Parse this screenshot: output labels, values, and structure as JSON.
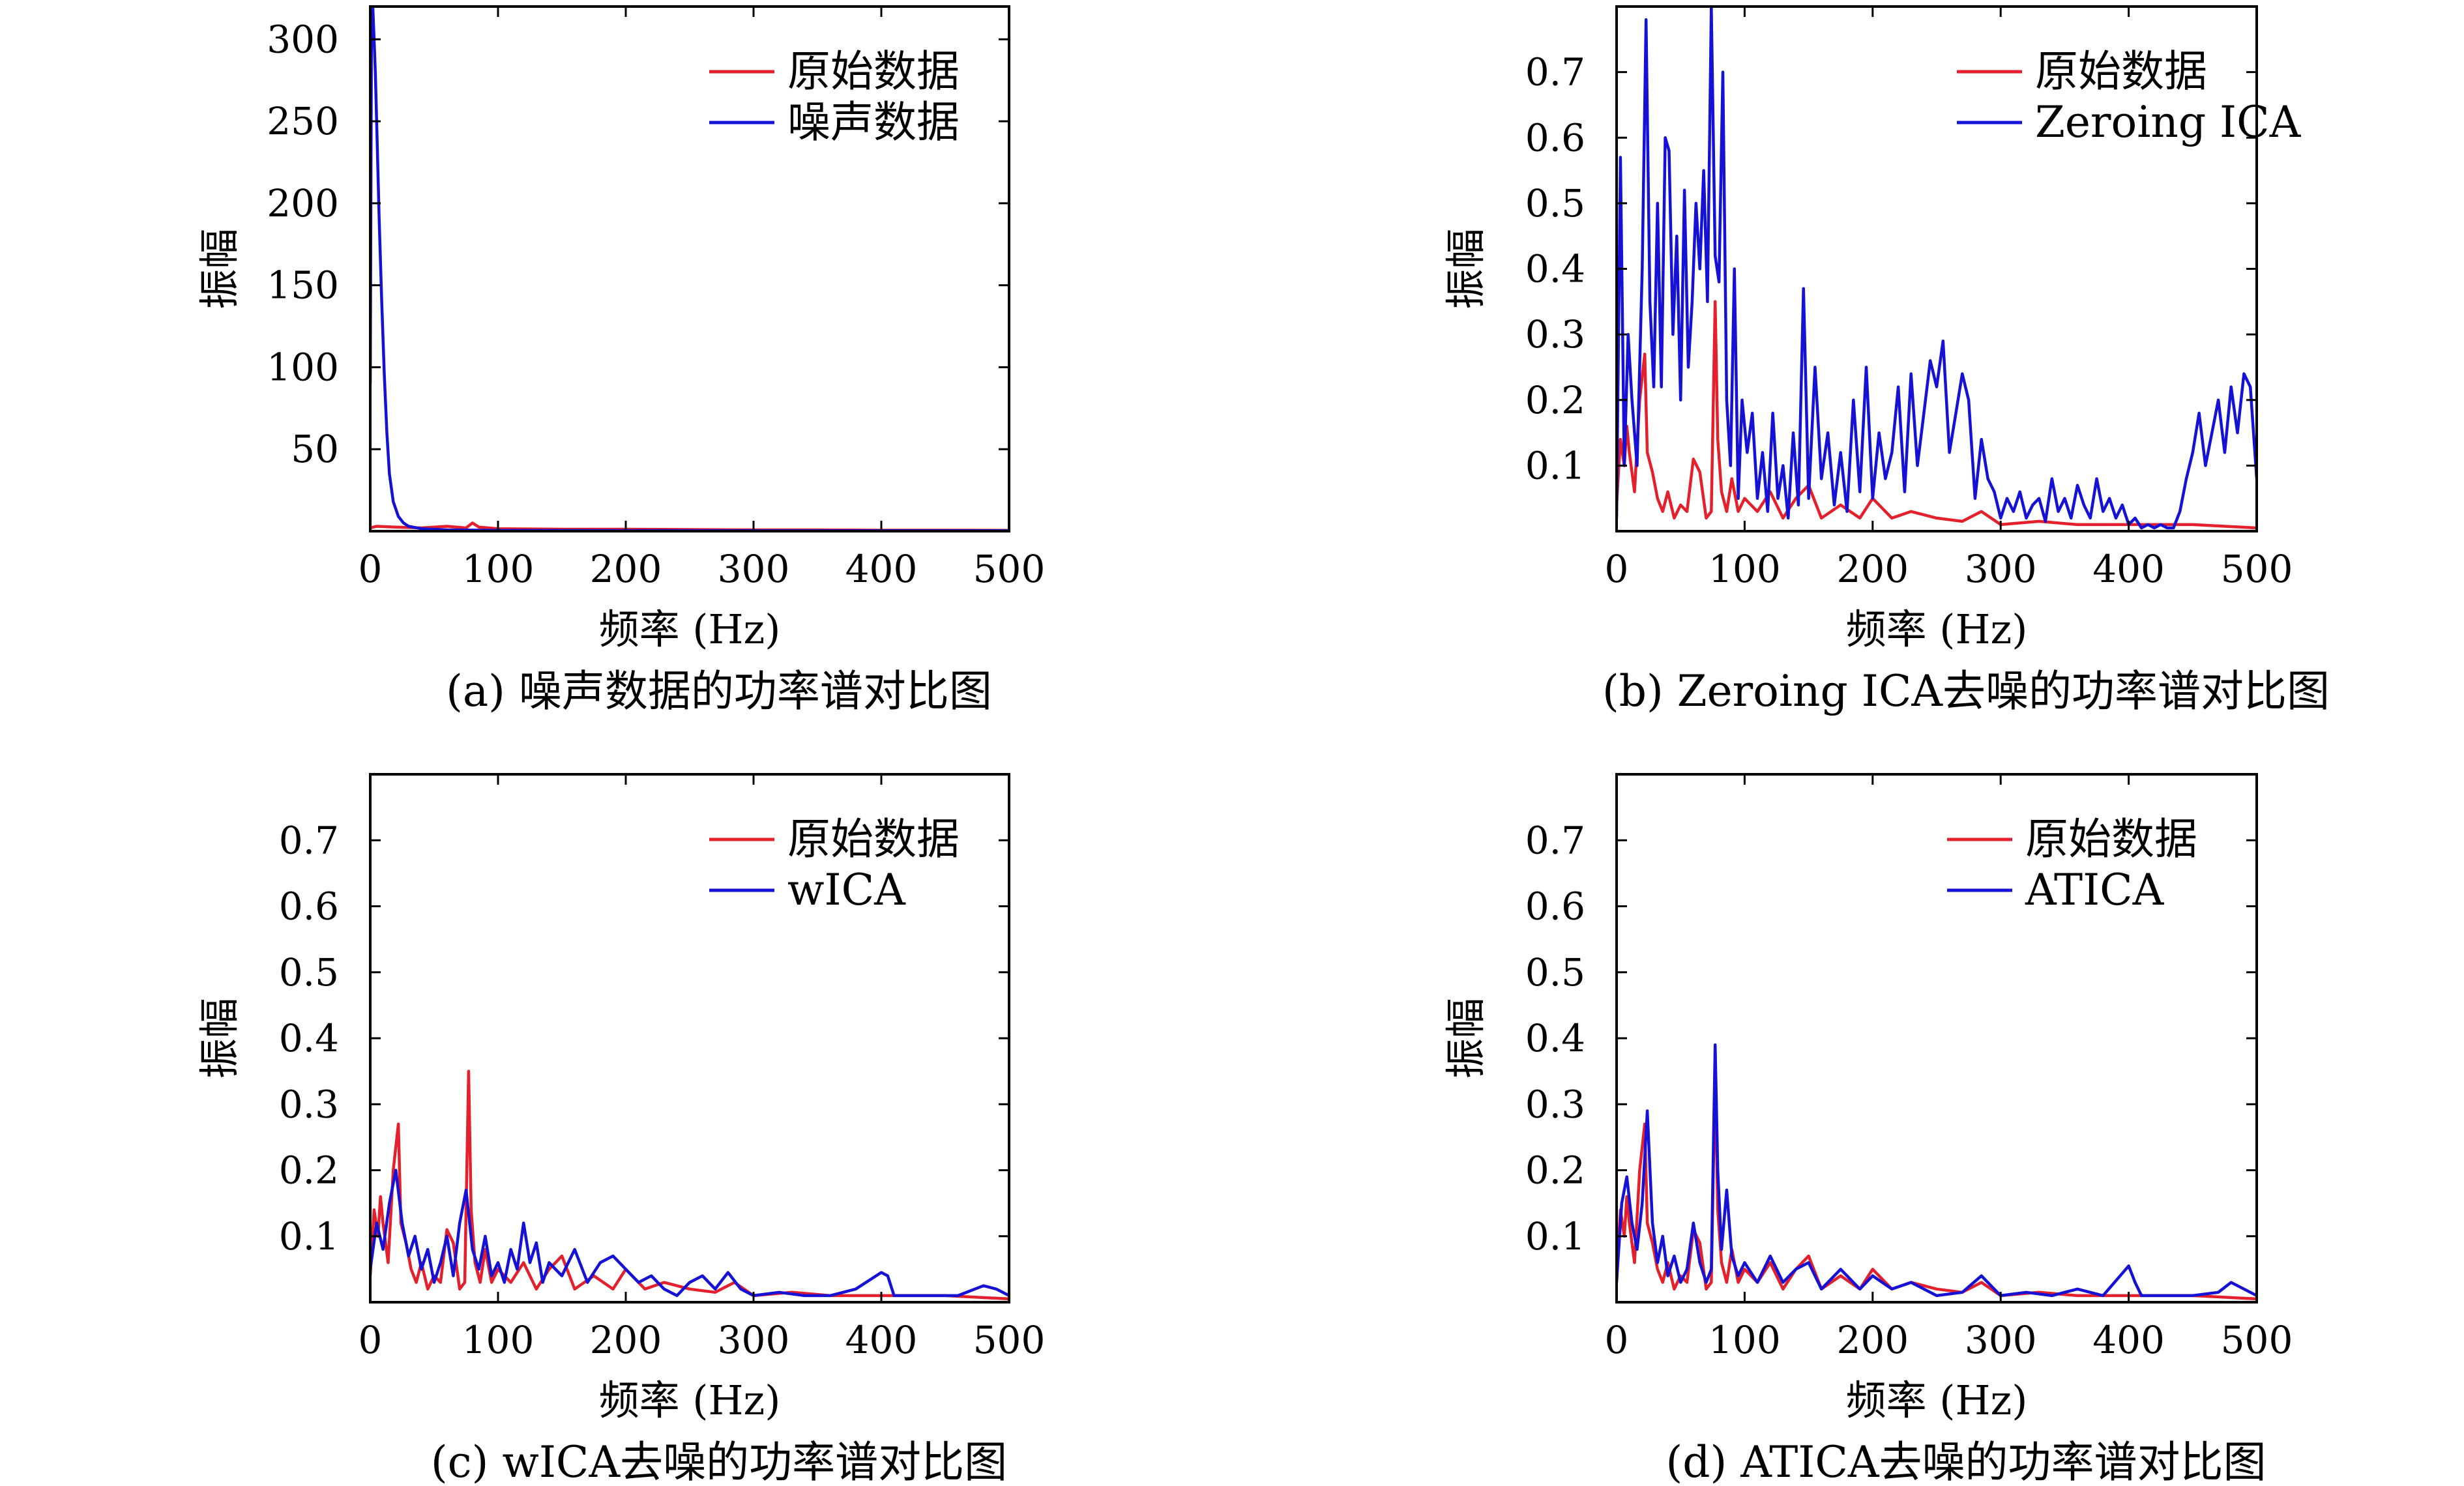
{
  "colors": {
    "original": "#e4202c",
    "other": "#1512d6"
  },
  "chart_data": [
    {
      "type": "line",
      "caption": "(a) 噪声数据的功率谱对比图",
      "xlabel": "频率 (Hz)",
      "ylabel": "振幅",
      "xlim": [
        0,
        500
      ],
      "ylim": [
        0,
        320
      ],
      "xticks": [
        0,
        100,
        200,
        300,
        400,
        500
      ],
      "xtick_labels": [
        "0",
        "100",
        "200",
        "300",
        "400",
        "500"
      ],
      "yticks": [
        50,
        100,
        150,
        200,
        250,
        300
      ],
      "ytick_labels": [
        "50",
        "100",
        "150",
        "200",
        "250",
        "300"
      ],
      "legend_position": "top-right",
      "series": [
        {
          "name": "原始数据",
          "color": "#e4202c",
          "x": [
            0,
            5,
            20,
            40,
            60,
            75,
            80,
            85,
            100,
            150,
            200,
            250,
            300,
            350,
            400,
            450,
            500
          ],
          "y": [
            2,
            3,
            2.5,
            2,
            3,
            2,
            5,
            2.5,
            1.5,
            1.2,
            1.2,
            1,
            0.8,
            0.8,
            0.6,
            0.6,
            0.5
          ]
        },
        {
          "name": "噪声数据",
          "color": "#1512d6",
          "x": [
            0,
            1,
            2,
            3,
            4,
            5,
            7,
            9,
            11,
            13,
            15,
            18,
            22,
            26,
            30,
            40,
            60,
            100,
            200,
            300,
            400,
            500
          ],
          "y": [
            90,
            320,
            320,
            300,
            280,
            250,
            190,
            140,
            95,
            60,
            35,
            18,
            9,
            5,
            3,
            1.5,
            0.8,
            0.5,
            0.4,
            0.3,
            0.3,
            0.3
          ]
        }
      ]
    },
    {
      "type": "line",
      "caption": "(b) Zeroing ICA去噪的功率谱对比图",
      "xlabel": "频率 (Hz)",
      "ylabel": "振幅",
      "xlim": [
        0,
        500
      ],
      "ylim": [
        0,
        0.8
      ],
      "xticks": [
        0,
        100,
        200,
        300,
        400,
        500
      ],
      "xtick_labels": [
        "0",
        "100",
        "200",
        "300",
        "400",
        "500"
      ],
      "yticks": [
        0.1,
        0.2,
        0.3,
        0.4,
        0.5,
        0.6,
        0.7
      ],
      "ytick_labels": [
        "0.1",
        "0.2",
        "0.3",
        "0.4",
        "0.5",
        "0.6",
        "0.7"
      ],
      "legend_position": "top-right",
      "series": [
        {
          "name": "原始数据",
          "color": "#e4202c",
          "x": [
            0,
            3,
            6,
            8,
            10,
            14,
            18,
            22,
            24,
            28,
            32,
            36,
            40,
            45,
            50,
            55,
            60,
            65,
            70,
            74,
            77,
            79,
            82,
            86,
            90,
            95,
            100,
            110,
            120,
            130,
            140,
            150,
            160,
            175,
            190,
            200,
            215,
            230,
            250,
            270,
            285,
            300,
            330,
            360,
            400,
            450,
            500
          ],
          "y": [
            0.04,
            0.14,
            0.1,
            0.16,
            0.12,
            0.06,
            0.2,
            0.27,
            0.12,
            0.09,
            0.05,
            0.03,
            0.06,
            0.02,
            0.04,
            0.03,
            0.11,
            0.09,
            0.02,
            0.03,
            0.35,
            0.14,
            0.06,
            0.03,
            0.08,
            0.03,
            0.05,
            0.03,
            0.06,
            0.02,
            0.05,
            0.07,
            0.02,
            0.04,
            0.02,
            0.05,
            0.02,
            0.03,
            0.02,
            0.015,
            0.03,
            0.01,
            0.015,
            0.01,
            0.01,
            0.01,
            0.005
          ]
        },
        {
          "name": "Zeroing ICA",
          "color": "#1512d6",
          "x": [
            0,
            3,
            6,
            9,
            12,
            16,
            20,
            23,
            26,
            29,
            32,
            35,
            38,
            41,
            44,
            47,
            50,
            53,
            56,
            59,
            62,
            65,
            68,
            71,
            74,
            77,
            80,
            83,
            86,
            89,
            92,
            95,
            98,
            102,
            106,
            110,
            114,
            118,
            122,
            126,
            130,
            134,
            138,
            142,
            146,
            150,
            155,
            160,
            165,
            170,
            175,
            180,
            185,
            190,
            195,
            200,
            205,
            210,
            215,
            220,
            225,
            230,
            235,
            240,
            245,
            250,
            255,
            260,
            265,
            270,
            275,
            280,
            285,
            290,
            295,
            300,
            305,
            310,
            315,
            320,
            325,
            330,
            335,
            340,
            345,
            350,
            355,
            360,
            365,
            370,
            375,
            380,
            385,
            390,
            395,
            400,
            405,
            410,
            415,
            420,
            425,
            430,
            435,
            440,
            445,
            450,
            455,
            460,
            465,
            470,
            475,
            480,
            485,
            490,
            495,
            500
          ],
          "y": [
            0.02,
            0.57,
            0.1,
            0.3,
            0.2,
            0.1,
            0.4,
            0.78,
            0.35,
            0.22,
            0.5,
            0.22,
            0.6,
            0.58,
            0.3,
            0.45,
            0.2,
            0.52,
            0.25,
            0.35,
            0.5,
            0.4,
            0.55,
            0.35,
            0.8,
            0.42,
            0.38,
            0.7,
            0.2,
            0.1,
            0.4,
            0.05,
            0.2,
            0.12,
            0.18,
            0.05,
            0.12,
            0.03,
            0.18,
            0.05,
            0.1,
            0.02,
            0.15,
            0.04,
            0.37,
            0.05,
            0.25,
            0.08,
            0.15,
            0.04,
            0.12,
            0.03,
            0.2,
            0.06,
            0.25,
            0.05,
            0.15,
            0.08,
            0.12,
            0.22,
            0.06,
            0.24,
            0.1,
            0.18,
            0.26,
            0.22,
            0.29,
            0.12,
            0.18,
            0.24,
            0.2,
            0.05,
            0.14,
            0.08,
            0.06,
            0.02,
            0.05,
            0.03,
            0.06,
            0.02,
            0.04,
            0.05,
            0.015,
            0.08,
            0.03,
            0.05,
            0.02,
            0.07,
            0.04,
            0.02,
            0.08,
            0.03,
            0.05,
            0.02,
            0.04,
            0.01,
            0.02,
            0.005,
            0.01,
            0.005,
            0.01,
            0.005,
            0.005,
            0.03,
            0.08,
            0.12,
            0.18,
            0.1,
            0.15,
            0.2,
            0.12,
            0.22,
            0.15,
            0.24,
            0.22,
            0.08
          ]
        }
      ]
    },
    {
      "type": "line",
      "caption": "(c) wICA去噪的功率谱对比图",
      "xlabel": "频率 (Hz)",
      "ylabel": "振幅",
      "xlim": [
        0,
        500
      ],
      "ylim": [
        0,
        0.8
      ],
      "xticks": [
        0,
        100,
        200,
        300,
        400,
        500
      ],
      "xtick_labels": [
        "0",
        "100",
        "200",
        "300",
        "400",
        "500"
      ],
      "yticks": [
        0.1,
        0.2,
        0.3,
        0.4,
        0.5,
        0.6,
        0.7
      ],
      "ytick_labels": [
        "0.1",
        "0.2",
        "0.3",
        "0.4",
        "0.5",
        "0.6",
        "0.7"
      ],
      "legend_position": "top-right",
      "series": [
        {
          "name": "原始数据",
          "color": "#e4202c",
          "x": [
            0,
            3,
            6,
            8,
            10,
            14,
            18,
            22,
            24,
            28,
            32,
            36,
            40,
            45,
            50,
            55,
            60,
            65,
            70,
            74,
            77,
            79,
            82,
            86,
            90,
            95,
            100,
            110,
            120,
            130,
            140,
            150,
            160,
            175,
            190,
            200,
            215,
            230,
            250,
            270,
            285,
            300,
            330,
            360,
            400,
            450,
            500
          ],
          "y": [
            0.04,
            0.14,
            0.1,
            0.16,
            0.12,
            0.06,
            0.2,
            0.27,
            0.12,
            0.09,
            0.05,
            0.03,
            0.06,
            0.02,
            0.04,
            0.03,
            0.11,
            0.09,
            0.02,
            0.03,
            0.35,
            0.14,
            0.06,
            0.03,
            0.08,
            0.03,
            0.05,
            0.03,
            0.06,
            0.02,
            0.05,
            0.07,
            0.02,
            0.04,
            0.02,
            0.05,
            0.02,
            0.03,
            0.02,
            0.015,
            0.03,
            0.01,
            0.015,
            0.01,
            0.01,
            0.01,
            0.005
          ]
        },
        {
          "name": "wICA",
          "color": "#1512d6",
          "x": [
            0,
            5,
            10,
            15,
            20,
            25,
            30,
            35,
            40,
            45,
            50,
            55,
            60,
            65,
            70,
            75,
            80,
            85,
            90,
            95,
            100,
            105,
            110,
            115,
            120,
            125,
            130,
            135,
            140,
            150,
            160,
            170,
            180,
            190,
            200,
            210,
            220,
            230,
            240,
            250,
            260,
            270,
            280,
            290,
            300,
            320,
            340,
            360,
            380,
            400,
            405,
            410,
            420,
            440,
            460,
            480,
            490,
            500
          ],
          "y": [
            0.05,
            0.12,
            0.08,
            0.15,
            0.2,
            0.12,
            0.07,
            0.1,
            0.05,
            0.08,
            0.03,
            0.06,
            0.1,
            0.04,
            0.12,
            0.17,
            0.08,
            0.05,
            0.1,
            0.04,
            0.06,
            0.03,
            0.08,
            0.05,
            0.12,
            0.06,
            0.09,
            0.03,
            0.06,
            0.04,
            0.08,
            0.03,
            0.06,
            0.07,
            0.05,
            0.03,
            0.04,
            0.02,
            0.01,
            0.03,
            0.04,
            0.02,
            0.045,
            0.02,
            0.01,
            0.015,
            0.01,
            0.01,
            0.02,
            0.045,
            0.04,
            0.01,
            0.01,
            0.01,
            0.01,
            0.025,
            0.02,
            0.01
          ]
        }
      ]
    },
    {
      "type": "line",
      "caption": "(d) ATICA去噪的功率谱对比图",
      "xlabel": "频率 (Hz)",
      "ylabel": "振幅",
      "xlim": [
        0,
        500
      ],
      "ylim": [
        0,
        0.8
      ],
      "xticks": [
        0,
        100,
        200,
        300,
        400,
        500
      ],
      "xtick_labels": [
        "0",
        "100",
        "200",
        "300",
        "400",
        "500"
      ],
      "yticks": [
        0.1,
        0.2,
        0.3,
        0.4,
        0.5,
        0.6,
        0.7
      ],
      "ytick_labels": [
        "0.1",
        "0.2",
        "0.3",
        "0.4",
        "0.5",
        "0.6",
        "0.7"
      ],
      "legend_position": "top-right",
      "series": [
        {
          "name": "原始数据",
          "color": "#e4202c",
          "x": [
            0,
            3,
            6,
            8,
            10,
            14,
            18,
            22,
            24,
            28,
            32,
            36,
            40,
            45,
            50,
            55,
            60,
            65,
            70,
            74,
            77,
            79,
            82,
            86,
            90,
            95,
            100,
            110,
            120,
            130,
            140,
            150,
            160,
            175,
            190,
            200,
            215,
            230,
            250,
            270,
            285,
            300,
            330,
            360,
            400,
            450,
            500
          ],
          "y": [
            0.04,
            0.14,
            0.1,
            0.16,
            0.12,
            0.06,
            0.2,
            0.27,
            0.12,
            0.09,
            0.05,
            0.03,
            0.06,
            0.02,
            0.04,
            0.03,
            0.11,
            0.09,
            0.02,
            0.03,
            0.35,
            0.14,
            0.06,
            0.03,
            0.08,
            0.03,
            0.05,
            0.03,
            0.06,
            0.02,
            0.05,
            0.07,
            0.02,
            0.04,
            0.02,
            0.05,
            0.02,
            0.03,
            0.02,
            0.015,
            0.03,
            0.01,
            0.015,
            0.01,
            0.01,
            0.01,
            0.005
          ]
        },
        {
          "name": "ATICA",
          "color": "#1512d6",
          "x": [
            0,
            4,
            8,
            12,
            16,
            20,
            24,
            28,
            32,
            36,
            40,
            45,
            50,
            55,
            60,
            65,
            70,
            74,
            77,
            79,
            82,
            86,
            90,
            95,
            100,
            110,
            120,
            130,
            140,
            150,
            160,
            175,
            190,
            200,
            215,
            230,
            250,
            270,
            285,
            300,
            320,
            340,
            360,
            380,
            400,
            405,
            410,
            430,
            450,
            470,
            480,
            490,
            500
          ],
          "y": [
            0.03,
            0.15,
            0.19,
            0.12,
            0.08,
            0.15,
            0.29,
            0.12,
            0.06,
            0.1,
            0.04,
            0.07,
            0.03,
            0.05,
            0.12,
            0.06,
            0.03,
            0.05,
            0.39,
            0.2,
            0.08,
            0.17,
            0.07,
            0.04,
            0.06,
            0.03,
            0.07,
            0.03,
            0.05,
            0.06,
            0.02,
            0.05,
            0.02,
            0.04,
            0.02,
            0.03,
            0.01,
            0.015,
            0.04,
            0.01,
            0.015,
            0.01,
            0.02,
            0.01,
            0.055,
            0.03,
            0.01,
            0.01,
            0.01,
            0.015,
            0.03,
            0.02,
            0.01
          ]
        }
      ]
    }
  ]
}
